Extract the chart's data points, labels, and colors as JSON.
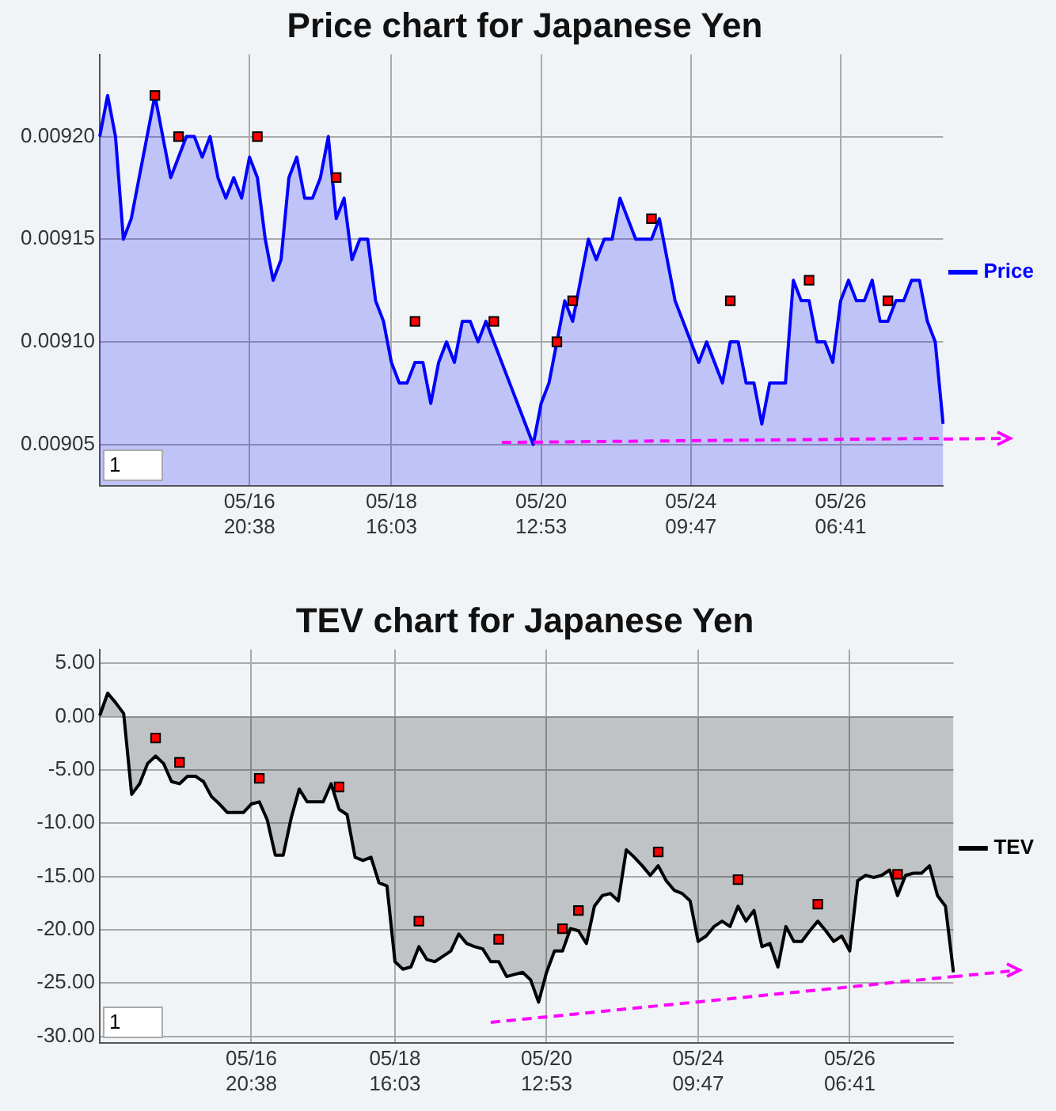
{
  "chart_data": [
    {
      "type": "area",
      "title": "Price chart for Japanese Yen",
      "grid": true,
      "legend": "right",
      "annotations": [
        "1"
      ],
      "categories": [
        null,
        null,
        null,
        null,
        null,
        null,
        null,
        null,
        null,
        null,
        null,
        null,
        null,
        null,
        null,
        null,
        null,
        null,
        null,
        "05/16 20:38",
        null,
        null,
        null,
        null,
        null,
        null,
        null,
        null,
        null,
        null,
        null,
        null,
        null,
        null,
        null,
        null,
        null,
        "05/18 16:03",
        null,
        null,
        null,
        null,
        null,
        null,
        null,
        null,
        null,
        null,
        null,
        null,
        null,
        null,
        null,
        null,
        null,
        null,
        "05/20 12:53",
        null,
        null,
        null,
        null,
        null,
        null,
        null,
        null,
        null,
        null,
        null,
        null,
        null,
        null,
        null,
        null,
        null,
        null,
        "05/24 09:47",
        null,
        null,
        null,
        null,
        null,
        null,
        null,
        null,
        null,
        null,
        null,
        null,
        null,
        null,
        null,
        null,
        null,
        null,
        "05/26 06:41",
        null,
        null,
        null,
        null,
        null,
        null,
        null,
        null,
        null,
        null,
        null,
        null,
        null
      ],
      "ylim": [
        0.00903,
        0.00924
      ],
      "yticks": [
        {
          "value": 0.00905,
          "label": "0.00905"
        },
        {
          "value": 0.0091,
          "label": "0.00910"
        },
        {
          "value": 0.00915,
          "label": "0.00915"
        },
        {
          "value": 0.0092,
          "label": "0.00920"
        }
      ],
      "series": [
        {
          "name": "Price",
          "color": "#0000ff",
          "values": [
            0.0092,
            0.00922,
            0.0092,
            0.00915,
            0.00916,
            0.00918,
            0.0092,
            0.00922,
            0.0092,
            0.00918,
            0.00919,
            0.0092,
            0.0092,
            0.00919,
            0.0092,
            0.00918,
            0.00917,
            0.00918,
            0.00917,
            0.00919,
            0.00918,
            0.00915,
            0.00913,
            0.00914,
            0.00918,
            0.00919,
            0.00917,
            0.00917,
            0.00918,
            0.0092,
            0.00916,
            0.00917,
            0.00914,
            0.00915,
            0.00915,
            0.00912,
            0.00911,
            0.00909,
            0.00908,
            0.00908,
            0.00909,
            0.00909,
            0.00907,
            0.00909,
            0.0091,
            0.00909,
            0.00911,
            0.00911,
            0.0091,
            0.00911,
            0.0091,
            0.00909,
            0.00908,
            0.00907,
            0.00906,
            0.00905,
            0.00907,
            0.00908,
            0.0091,
            0.00912,
            0.00911,
            0.00913,
            0.00915,
            0.00914,
            0.00915,
            0.00915,
            0.00917,
            0.00916,
            0.00915,
            0.00915,
            0.00915,
            0.00916,
            0.00914,
            0.00912,
            0.00911,
            0.0091,
            0.00909,
            0.0091,
            0.00909,
            0.00908,
            0.0091,
            0.0091,
            0.00908,
            0.00908,
            0.00906,
            0.00908,
            0.00908,
            0.00908,
            0.00913,
            0.00912,
            0.00912,
            0.0091,
            0.0091,
            0.00909,
            0.00912,
            0.00913,
            0.00912,
            0.00912,
            0.00913,
            0.00911,
            0.00911,
            0.00912,
            0.00912,
            0.00913,
            0.00913,
            0.00911,
            0.0091,
            0.00906
          ]
        },
        {
          "type": "scatter",
          "color": "#ff0000",
          "marker": "square",
          "values": [
            null,
            null,
            null,
            null,
            null,
            null,
            null,
            0.00922,
            null,
            null,
            0.0092,
            null,
            null,
            null,
            null,
            null,
            null,
            null,
            null,
            null,
            0.0092,
            null,
            null,
            null,
            null,
            null,
            null,
            null,
            null,
            null,
            0.00918,
            null,
            null,
            null,
            null,
            null,
            null,
            null,
            null,
            null,
            0.00911,
            null,
            null,
            null,
            null,
            null,
            null,
            null,
            null,
            null,
            0.00911,
            null,
            null,
            null,
            null,
            null,
            null,
            null,
            0.0091,
            null,
            0.00912,
            null,
            null,
            null,
            null,
            null,
            null,
            null,
            null,
            null,
            0.00916,
            null,
            null,
            null,
            null,
            null,
            null,
            null,
            null,
            null,
            0.00912,
            null,
            null,
            null,
            null,
            null,
            null,
            null,
            null,
            null,
            0.00913,
            null,
            null,
            null,
            null,
            null,
            null,
            null,
            null,
            null,
            0.00912,
            null,
            null,
            null,
            null,
            null,
            null,
            null
          ]
        },
        {
          "type": "line",
          "color": "#ff00ff",
          "line_style": "dashed",
          "values": [
            null,
            null,
            null,
            null,
            null,
            null,
            null,
            null,
            null,
            null,
            null,
            null,
            null,
            null,
            null,
            null,
            null,
            null,
            null,
            null,
            null,
            null,
            null,
            null,
            null,
            null,
            null,
            null,
            null,
            null,
            null,
            null,
            null,
            null,
            null,
            null,
            null,
            null,
            null,
            null,
            null,
            null,
            null,
            null,
            null,
            null,
            null,
            null,
            null,
            null,
            null,
            0.009051,
            null,
            null,
            null,
            null,
            null,
            null,
            null,
            null,
            null,
            null,
            null,
            null,
            null,
            null,
            null,
            null,
            null,
            null,
            null,
            null,
            null,
            null,
            null,
            null,
            null,
            null,
            null,
            null,
            null,
            null,
            null,
            null,
            null,
            null,
            null,
            null,
            null,
            null,
            null,
            null,
            null,
            null,
            null,
            null,
            null,
            null,
            null,
            null,
            null,
            null,
            null,
            null,
            null,
            null,
            null,
            0.009053
          ]
        }
      ]
    },
    {
      "type": "area",
      "title": "TEV chart for Japanese Yen",
      "grid": true,
      "legend": "right",
      "annotations": [
        "1"
      ],
      "categories": [
        null,
        null,
        null,
        null,
        null,
        null,
        null,
        null,
        null,
        null,
        null,
        null,
        null,
        null,
        null,
        null,
        null,
        null,
        null,
        "05/16 20:38",
        null,
        null,
        null,
        null,
        null,
        null,
        null,
        null,
        null,
        null,
        null,
        null,
        null,
        null,
        null,
        null,
        null,
        "05/18 16:03",
        null,
        null,
        null,
        null,
        null,
        null,
        null,
        null,
        null,
        null,
        null,
        null,
        null,
        null,
        null,
        null,
        null,
        null,
        "05/20 12:53",
        null,
        null,
        null,
        null,
        null,
        null,
        null,
        null,
        null,
        null,
        null,
        null,
        null,
        null,
        null,
        null,
        null,
        null,
        "05/24 09:47",
        null,
        null,
        null,
        null,
        null,
        null,
        null,
        null,
        null,
        null,
        null,
        null,
        null,
        null,
        null,
        null,
        null,
        null,
        "05/26 06:41",
        null,
        null,
        null,
        null,
        null,
        null,
        null,
        null,
        null,
        null,
        null,
        null,
        null
      ],
      "ylim": [
        -30.6,
        6.3
      ],
      "yticks": [
        {
          "value": -30,
          "label": "-30.00"
        },
        {
          "value": -25,
          "label": "-25.00"
        },
        {
          "value": -20,
          "label": "-20.00"
        },
        {
          "value": -15,
          "label": "-15.00"
        },
        {
          "value": -10,
          "label": "-10.00"
        },
        {
          "value": -5,
          "label": "-5.00"
        },
        {
          "value": 0,
          "label": "0.00"
        },
        {
          "value": 5,
          "label": "5.00"
        }
      ],
      "series": [
        {
          "name": "TEV",
          "color": "#000000",
          "values": [
            0.1,
            2.2,
            1.3,
            0.3,
            -7.3,
            -6.3,
            -4.4,
            -3.7,
            -4.4,
            -6.1,
            -6.3,
            -5.6,
            -5.6,
            -6.1,
            -7.5,
            -8.2,
            -9,
            -9,
            -9,
            -8.2,
            -8,
            -9.7,
            -13,
            -13,
            -9.5,
            -6.8,
            -8,
            -8,
            -8,
            -6.3,
            -8.7,
            -9.2,
            -13.2,
            -13.5,
            -13.2,
            -15.6,
            -15.9,
            -23,
            -23.7,
            -23.5,
            -21.6,
            -22.8,
            -23,
            -22.5,
            -22,
            -20.4,
            -21.3,
            -21.6,
            -21.8,
            -23,
            -23,
            -24.4,
            -24.2,
            -24,
            -24.7,
            -26.8,
            -24,
            -22,
            -22,
            -19.9,
            -20.1,
            -21.3,
            -17.8,
            -16.8,
            -16.6,
            -17.3,
            -12.5,
            -13.2,
            -14,
            -14.9,
            -14,
            -15.4,
            -16.3,
            -16.6,
            -17.3,
            -21.1,
            -20.6,
            -19.7,
            -19.2,
            -19.7,
            -17.8,
            -19.2,
            -18.2,
            -21.6,
            -21.3,
            -23.5,
            -19.7,
            -21.1,
            -21.1,
            -20.1,
            -19.2,
            -20.1,
            -21.1,
            -20.6,
            -22,
            -15.4,
            -14.9,
            -15.1,
            -14.9,
            -14.4,
            -16.8,
            -14.9,
            -14.7,
            -14.7,
            -14,
            -16.8,
            -17.8,
            -24
          ]
        },
        {
          "type": "scatter",
          "color": "#ff0000",
          "marker": "square",
          "values": [
            null,
            null,
            null,
            null,
            null,
            null,
            null,
            -2,
            null,
            null,
            -4.3,
            null,
            null,
            null,
            null,
            null,
            null,
            null,
            null,
            null,
            -5.8,
            null,
            null,
            null,
            null,
            null,
            null,
            null,
            null,
            null,
            -6.6,
            null,
            null,
            null,
            null,
            null,
            null,
            null,
            null,
            null,
            -19.2,
            null,
            null,
            null,
            null,
            null,
            null,
            null,
            null,
            null,
            -20.9,
            null,
            null,
            null,
            null,
            null,
            null,
            null,
            -19.9,
            null,
            -18.2,
            null,
            null,
            null,
            null,
            null,
            null,
            null,
            null,
            null,
            -12.7,
            null,
            null,
            null,
            null,
            null,
            null,
            null,
            null,
            null,
            -15.3,
            null,
            null,
            null,
            null,
            null,
            null,
            null,
            null,
            null,
            -17.6,
            null,
            null,
            null,
            null,
            null,
            null,
            null,
            null,
            null,
            -14.8,
            null,
            null,
            null,
            null,
            null,
            null,
            null
          ]
        },
        {
          "type": "line",
          "color": "#ff00ff",
          "line_style": "dashed",
          "values": [
            null,
            null,
            null,
            null,
            null,
            null,
            null,
            null,
            null,
            null,
            null,
            null,
            null,
            null,
            null,
            null,
            null,
            null,
            null,
            null,
            null,
            null,
            null,
            null,
            null,
            null,
            null,
            null,
            null,
            null,
            null,
            null,
            null,
            null,
            null,
            null,
            null,
            null,
            null,
            null,
            null,
            null,
            null,
            null,
            null,
            null,
            null,
            null,
            null,
            -28.7,
            null,
            null,
            null,
            null,
            null,
            null,
            null,
            null,
            null,
            null,
            null,
            null,
            null,
            null,
            null,
            null,
            null,
            null,
            null,
            null,
            null,
            null,
            null,
            null,
            null,
            null,
            null,
            null,
            null,
            null,
            null,
            null,
            null,
            null,
            null,
            null,
            null,
            null,
            null,
            null,
            null,
            null,
            null,
            null,
            null,
            null,
            null,
            null,
            null,
            null,
            null,
            null,
            null,
            null,
            null,
            null,
            null,
            -24.4
          ]
        }
      ]
    }
  ]
}
